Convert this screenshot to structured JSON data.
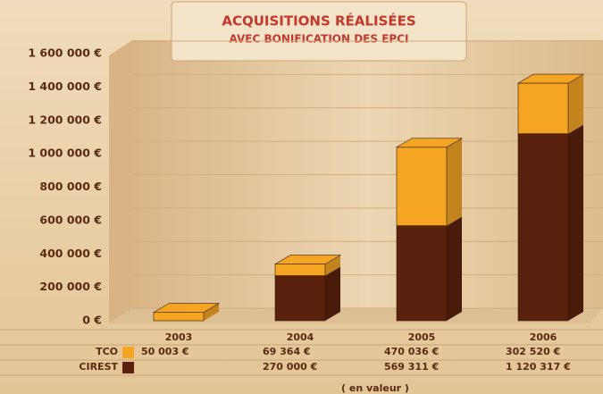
{
  "chart_data": {
    "type": "bar",
    "stacked": true,
    "title": "ACQUISITIONS RÉALISÉES",
    "subtitle": "AVEC BONIFICATION DES EPCI",
    "x_label": "( en valeur )",
    "categories": [
      "2003",
      "2004",
      "2005",
      "2006"
    ],
    "series": [
      {
        "name": "TCO",
        "color": "#f5a524",
        "values": [
          50003,
          69364,
          470036,
          302520
        ],
        "value_labels": [
          "50 003 €",
          "69 364 €",
          "470 036 €",
          "302 520 €"
        ]
      },
      {
        "name": "CIREST",
        "color": "#5a220e",
        "values": [
          null,
          270000,
          569311,
          1120317
        ],
        "value_labels": [
          null,
          "270 000 €",
          "569 311 €",
          "1 120 317 €"
        ]
      }
    ],
    "ylim": [
      0,
      1600000
    ],
    "yticks": [
      {
        "value": 0,
        "label": "0 €"
      },
      {
        "value": 200000,
        "label": "200 000 €"
      },
      {
        "value": 400000,
        "label": "400 000 €"
      },
      {
        "value": 600000,
        "label": "600 000 €"
      },
      {
        "value": 800000,
        "label": "800 000 €"
      },
      {
        "value": 1000000,
        "label": "1 000 000 €"
      },
      {
        "value": 1200000,
        "label": "1 200 000 €"
      },
      {
        "value": 1400000,
        "label": "1 400 000 €"
      },
      {
        "value": 1600000,
        "label": "1 600 000 €"
      }
    ],
    "grid": true
  }
}
